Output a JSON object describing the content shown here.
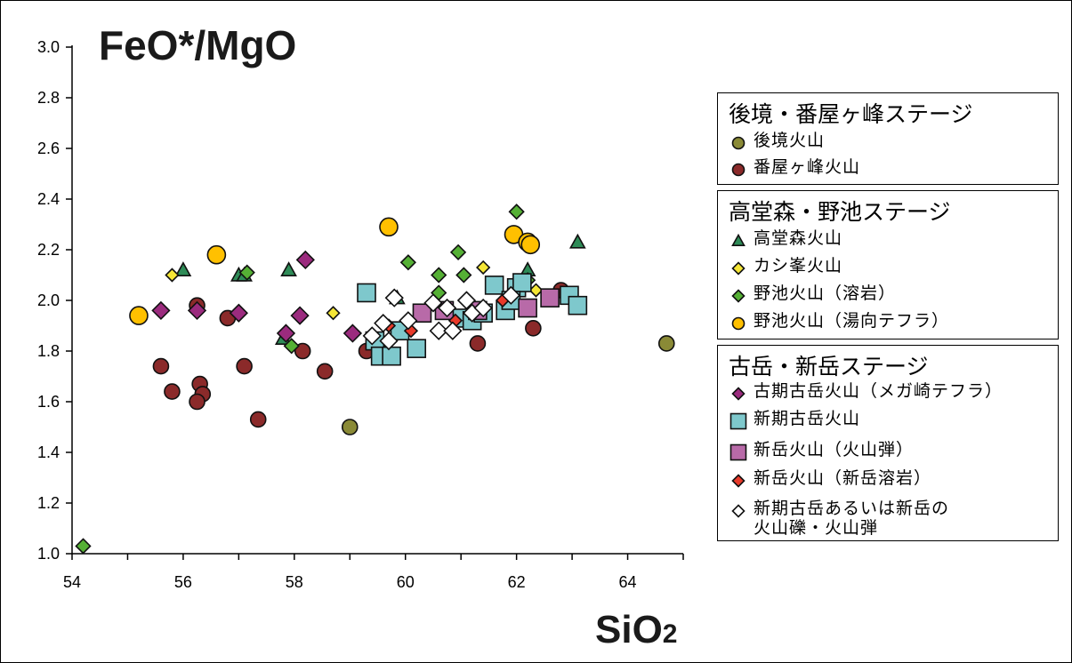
{
  "chart_data": {
    "type": "scatter",
    "title": "",
    "ylabel": "FeO*/MgO",
    "xlabel_main": "SiO",
    "xlabel_sub": "2",
    "xlim": [
      54,
      65
    ],
    "ylim": [
      1.0,
      3.0
    ],
    "xticks": [
      "54",
      "56",
      "58",
      "60",
      "62",
      "64"
    ],
    "yticks": [
      "1.0",
      "1.2",
      "1.4",
      "1.6",
      "1.8",
      "2.0",
      "2.2",
      "2.4",
      "2.6",
      "2.8",
      "3.0"
    ],
    "grid": false,
    "legend_position": "right",
    "groups": [
      {
        "title": "後境・番屋ヶ峰ステージ",
        "series": [
          {
            "name": "後境火山",
            "marker": "circle",
            "color": "#8a8a36",
            "points": [
              [
                64.7,
                1.83
              ],
              [
                59.0,
                1.5
              ]
            ]
          },
          {
            "name": "番屋ヶ峰火山",
            "marker": "circle",
            "color": "#8b2a2a",
            "points": [
              [
                55.6,
                1.74
              ],
              [
                55.8,
                1.64
              ],
              [
                56.25,
                1.98
              ],
              [
                56.3,
                1.67
              ],
              [
                56.35,
                1.63
              ],
              [
                56.25,
                1.6
              ],
              [
                56.8,
                1.93
              ],
              [
                57.1,
                1.74
              ],
              [
                57.35,
                1.53
              ],
              [
                58.15,
                1.8
              ],
              [
                58.55,
                1.72
              ],
              [
                59.3,
                1.8
              ],
              [
                61.3,
                1.83
              ],
              [
                62.3,
                1.89
              ],
              [
                62.8,
                2.04
              ]
            ]
          }
        ]
      },
      {
        "title": "高堂森・野池ステージ",
        "series": [
          {
            "name": "高堂森火山",
            "marker": "triangle",
            "color": "#2e8b57",
            "points": [
              [
                56.0,
                2.12
              ],
              [
                57.0,
                2.1
              ],
              [
                57.1,
                2.1
              ],
              [
                57.9,
                2.12
              ],
              [
                57.8,
                1.85
              ],
              [
                59.85,
                2.01
              ],
              [
                62.2,
                2.12
              ],
              [
                63.1,
                2.23
              ]
            ]
          },
          {
            "name": "カシ峯火山",
            "marker": "diamond",
            "color": "#f5e636",
            "points": [
              [
                55.8,
                2.1
              ],
              [
                58.7,
                1.95
              ],
              [
                61.4,
                2.13
              ],
              [
                62.35,
                2.04
              ]
            ]
          },
          {
            "name": "野池火山（溶岩）",
            "marker": "diamond",
            "color": "#55b035",
            "points": [
              [
                54.2,
                1.03
              ],
              [
                57.15,
                2.11
              ],
              [
                57.95,
                1.82
              ],
              [
                60.05,
                2.15
              ],
              [
                60.6,
                2.1
              ],
              [
                60.95,
                2.19
              ],
              [
                61.05,
                2.1
              ],
              [
                60.6,
                2.03
              ],
              [
                62.0,
                2.35
              ],
              [
                62.2,
                2.08
              ],
              [
                59.6,
                1.83
              ]
            ]
          },
          {
            "name": "野池火山（湯向テフラ）",
            "marker": "circle",
            "color": "#ffc000",
            "points": [
              [
                55.2,
                1.94
              ],
              [
                56.6,
                2.18
              ],
              [
                59.7,
                2.29
              ],
              [
                61.95,
                2.26
              ],
              [
                62.2,
                2.23
              ],
              [
                62.25,
                2.22
              ]
            ]
          }
        ]
      },
      {
        "title": "古岳・新岳ステージ",
        "series": [
          {
            "name": "古期古岳火山（メガ崎テフラ）",
            "marker": "diamond",
            "color": "#9b2b7e",
            "points": [
              [
                55.6,
                1.96
              ],
              [
                56.25,
                1.96
              ],
              [
                57.0,
                1.95
              ],
              [
                57.85,
                1.87
              ],
              [
                58.1,
                1.94
              ],
              [
                58.2,
                2.16
              ],
              [
                59.05,
                1.87
              ]
            ]
          },
          {
            "name": "新期古岳火山",
            "marker": "square",
            "color": "#7ec8cc",
            "points": [
              [
                59.3,
                2.03
              ],
              [
                59.45,
                1.84
              ],
              [
                59.55,
                1.78
              ],
              [
                59.75,
                1.78
              ],
              [
                60.2,
                1.81
              ],
              [
                59.9,
                1.88
              ],
              [
                61.0,
                1.93
              ],
              [
                61.2,
                1.92
              ],
              [
                61.4,
                1.95
              ],
              [
                61.6,
                2.06
              ],
              [
                61.8,
                1.96
              ],
              [
                62.0,
                2.05
              ],
              [
                62.1,
                2.07
              ],
              [
                61.9,
                2.0
              ],
              [
                62.95,
                2.02
              ],
              [
                63.1,
                1.98
              ]
            ]
          },
          {
            "name": "新岳火山（火山弾）",
            "marker": "square",
            "color": "#b86aa8",
            "points": [
              [
                60.3,
                1.95
              ],
              [
                60.7,
                1.96
              ],
              [
                61.3,
                1.96
              ],
              [
                62.2,
                1.97
              ],
              [
                62.6,
                2.01
              ]
            ]
          },
          {
            "name": "新岳火山（新岳溶岩）",
            "marker": "diamond",
            "color": "#e83a2a",
            "points": [
              [
                59.7,
                1.9
              ],
              [
                60.1,
                1.88
              ],
              [
                60.9,
                1.92
              ],
              [
                61.75,
                2.0
              ]
            ]
          },
          {
            "name": "新期古岳あるいは新岳の\n火山礫・火山弾",
            "marker": "diamond",
            "color": "#ffffff",
            "points": [
              [
                59.4,
                1.86
              ],
              [
                59.6,
                1.91
              ],
              [
                59.8,
                2.01
              ],
              [
                60.05,
                1.92
              ],
              [
                60.5,
                1.99
              ],
              [
                60.6,
                1.88
              ],
              [
                60.75,
                1.97
              ],
              [
                60.85,
                1.88
              ],
              [
                61.1,
                2.0
              ],
              [
                61.2,
                1.95
              ],
              [
                61.4,
                1.97
              ],
              [
                61.9,
                2.02
              ],
              [
                59.7,
                1.84
              ]
            ]
          }
        ]
      }
    ]
  }
}
